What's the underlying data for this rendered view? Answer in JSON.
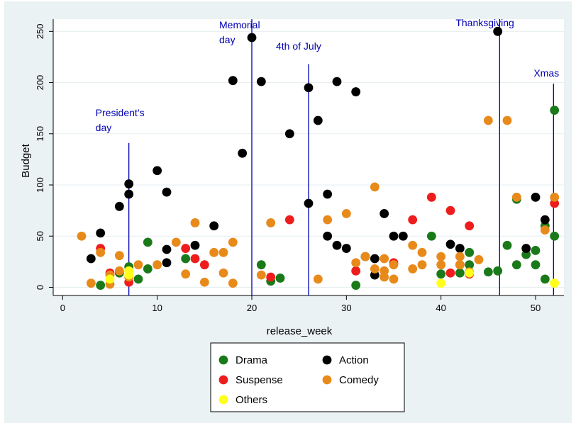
{
  "chart_data": {
    "type": "scatter",
    "title": "",
    "xlabel": "release_week",
    "ylabel": "Budget",
    "xlim": [
      -1,
      53
    ],
    "ylim": [
      -8,
      262
    ],
    "xticks": [
      "0",
      "10",
      "20",
      "30",
      "40",
      "50"
    ],
    "yticks": [
      "0",
      "50",
      "100",
      "150",
      "200",
      "250"
    ],
    "grid": "horizontal",
    "legend_position": "bottom",
    "series": [
      {
        "name": "Drama",
        "color": "#1a7a1a",
        "points": [
          [
            4,
            2
          ],
          [
            6,
            14
          ],
          [
            7,
            20
          ],
          [
            8,
            8
          ],
          [
            9,
            18
          ],
          [
            9,
            44
          ],
          [
            13,
            28
          ],
          [
            21,
            22
          ],
          [
            22,
            6
          ],
          [
            23,
            9
          ],
          [
            31,
            2
          ],
          [
            39,
            50
          ],
          [
            40,
            13
          ],
          [
            42,
            14
          ],
          [
            43,
            22
          ],
          [
            43,
            34
          ],
          [
            45,
            15
          ],
          [
            46,
            16
          ],
          [
            47,
            41
          ],
          [
            48,
            22
          ],
          [
            48,
            86
          ],
          [
            49,
            32
          ],
          [
            50,
            22
          ],
          [
            50,
            36
          ],
          [
            51,
            8
          ],
          [
            51,
            60
          ],
          [
            52,
            50
          ],
          [
            52,
            173
          ]
        ]
      },
      {
        "name": "Action",
        "color": "#000000",
        "points": [
          [
            3,
            28
          ],
          [
            4,
            53
          ],
          [
            6,
            79
          ],
          [
            7,
            91
          ],
          [
            7,
            101
          ],
          [
            10,
            114
          ],
          [
            11,
            24
          ],
          [
            11,
            37
          ],
          [
            11,
            93
          ],
          [
            14,
            41
          ],
          [
            16,
            60
          ],
          [
            18,
            202
          ],
          [
            19,
            131
          ],
          [
            20,
            244
          ],
          [
            21,
            201
          ],
          [
            24,
            150
          ],
          [
            26,
            82
          ],
          [
            26,
            195
          ],
          [
            27,
            163
          ],
          [
            28,
            50
          ],
          [
            28,
            91
          ],
          [
            29,
            41
          ],
          [
            29,
            201
          ],
          [
            30,
            38
          ],
          [
            31,
            191
          ],
          [
            32,
            30
          ],
          [
            33,
            12
          ],
          [
            33,
            28
          ],
          [
            34,
            72
          ],
          [
            35,
            50
          ],
          [
            36,
            50
          ],
          [
            41,
            42
          ],
          [
            42,
            38
          ],
          [
            46,
            250
          ],
          [
            49,
            38
          ],
          [
            50,
            88
          ],
          [
            51,
            66
          ]
        ]
      },
      {
        "name": "Suspense",
        "color": "#ee1c1c",
        "points": [
          [
            4,
            38
          ],
          [
            5,
            14
          ],
          [
            7,
            5
          ],
          [
            13,
            38
          ],
          [
            14,
            28
          ],
          [
            15,
            22
          ],
          [
            22,
            10
          ],
          [
            24,
            66
          ],
          [
            31,
            16
          ],
          [
            35,
            24
          ],
          [
            37,
            66
          ],
          [
            39,
            88
          ],
          [
            41,
            14
          ],
          [
            41,
            75
          ],
          [
            42,
            22
          ],
          [
            43,
            13
          ],
          [
            43,
            60
          ],
          [
            52,
            82
          ]
        ]
      },
      {
        "name": "Comedy",
        "color": "#e88a1a",
        "points": [
          [
            2,
            50
          ],
          [
            3,
            4
          ],
          [
            4,
            34
          ],
          [
            5,
            3
          ],
          [
            5,
            12
          ],
          [
            6,
            16
          ],
          [
            6,
            31
          ],
          [
            7,
            10
          ],
          [
            8,
            22
          ],
          [
            10,
            22
          ],
          [
            12,
            44
          ],
          [
            13,
            13
          ],
          [
            14,
            63
          ],
          [
            15,
            5
          ],
          [
            16,
            34
          ],
          [
            17,
            14
          ],
          [
            17,
            34
          ],
          [
            18,
            4
          ],
          [
            18,
            44
          ],
          [
            21,
            12
          ],
          [
            22,
            63
          ],
          [
            27,
            8
          ],
          [
            28,
            66
          ],
          [
            30,
            72
          ],
          [
            31,
            24
          ],
          [
            32,
            30
          ],
          [
            33,
            18
          ],
          [
            33,
            98
          ],
          [
            34,
            10
          ],
          [
            34,
            16
          ],
          [
            34,
            28
          ],
          [
            35,
            8
          ],
          [
            35,
            22
          ],
          [
            37,
            18
          ],
          [
            37,
            41
          ],
          [
            38,
            22
          ],
          [
            38,
            34
          ],
          [
            40,
            22
          ],
          [
            40,
            30
          ],
          [
            42,
            22
          ],
          [
            42,
            30
          ],
          [
            43,
            15
          ],
          [
            44,
            27
          ],
          [
            45,
            163
          ],
          [
            47,
            163
          ],
          [
            48,
            88
          ],
          [
            51,
            56
          ],
          [
            52,
            88
          ]
        ]
      },
      {
        "name": "Others",
        "color": "#ffff1a",
        "points": [
          [
            5,
            8
          ],
          [
            7,
            12
          ],
          [
            7,
            16
          ],
          [
            40,
            4
          ],
          [
            43,
            14
          ],
          [
            52,
            4
          ]
        ]
      }
    ],
    "annotations": [
      {
        "label_lines": [
          "President’s",
          "day"
        ],
        "x": 7,
        "line_top": 141,
        "label_top": 176
      },
      {
        "label_lines": [
          "Memorial",
          "day"
        ],
        "x": 20,
        "line_top": 262,
        "label_top": 262
      },
      {
        "label_lines": [
          "4th of July"
        ],
        "x": 26,
        "line_top": 218,
        "label_top": 239
      },
      {
        "label_lines": [
          "Thanksgiving"
        ],
        "x": 46.2,
        "line_top": 262,
        "label_top": 262
      },
      {
        "label_lines": [
          "Xmas"
        ],
        "x": 51.9,
        "line_top": 199,
        "label_top": 213
      }
    ],
    "legend": {
      "columns": [
        [
          "Drama",
          "Suspense",
          "Others"
        ],
        [
          "Action",
          "Comedy"
        ]
      ]
    },
    "colors": {
      "outer_background": "#eaf2f3",
      "plot_background": "#ffffff",
      "annotation": "#0000b3",
      "axis": "#000000",
      "grid": "#e6eef0"
    }
  }
}
